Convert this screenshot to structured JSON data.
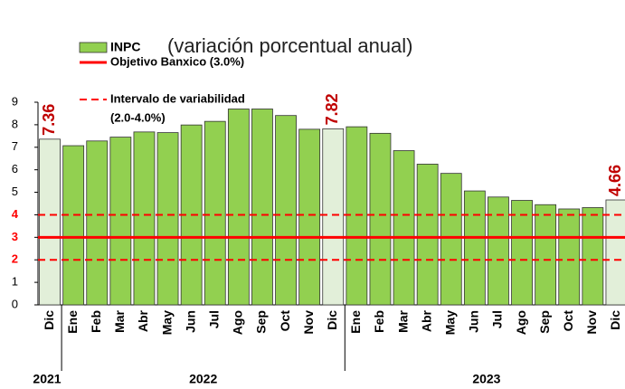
{
  "chart_data": {
    "type": "bar",
    "subtitle": "(variación porcentual anual)",
    "categories": [
      "Dic",
      "Ene",
      "Feb",
      "Mar",
      "Abr",
      "May",
      "Jun",
      "Jul",
      "Ago",
      "Sep",
      "Oct",
      "Nov",
      "Dic",
      "Ene",
      "Feb",
      "Mar",
      "Abr",
      "May",
      "Jun",
      "Jul",
      "Ago",
      "Sep",
      "Oct",
      "Nov",
      "Dic"
    ],
    "series": [
      {
        "name": "INPC",
        "color": "#92d050",
        "values": [
          7.36,
          7.07,
          7.28,
          7.45,
          7.68,
          7.65,
          7.99,
          8.15,
          8.7,
          8.7,
          8.41,
          7.8,
          7.82,
          7.91,
          7.62,
          6.85,
          6.25,
          5.84,
          5.06,
          4.79,
          4.64,
          4.45,
          4.26,
          4.32,
          4.66
        ]
      }
    ],
    "highlight": [
      0,
      12,
      24
    ],
    "highlight_color": "#e2efd9",
    "years": [
      {
        "label": "2021",
        "count": 1
      },
      {
        "label": "2022",
        "count": 12
      },
      {
        "label": "2023",
        "count": 12
      }
    ],
    "reference_lines": [
      {
        "name": "Objetivo Banxico (3.0%)",
        "values": [
          3
        ],
        "style": "solid",
        "color": "#ff0000"
      },
      {
        "name": [
          "Intervalo de variabilidad",
          "(2.0-4.0%)"
        ],
        "values": [
          2,
          4
        ],
        "style": "dashed",
        "color": "#ff0000"
      }
    ],
    "ylim": [
      0,
      9
    ],
    "yticks": [
      0,
      1,
      2,
      3,
      4,
      5,
      6,
      7,
      8,
      9
    ]
  }
}
